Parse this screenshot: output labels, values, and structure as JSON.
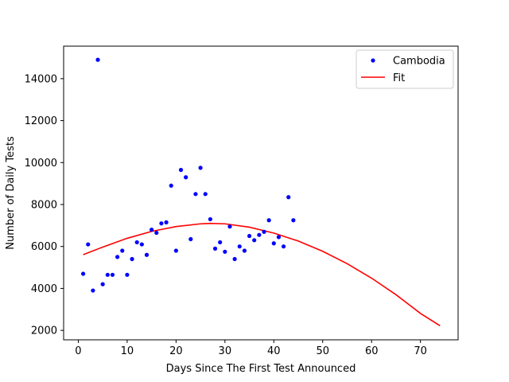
{
  "chart_data": {
    "type": "scatter",
    "title": "",
    "xlabel": "Days Since The First Test Announced",
    "ylabel": "Number of Daily Tests",
    "xlim": [
      -3,
      77.7
    ],
    "ylim": [
      1550,
      15550
    ],
    "xticks": [
      0,
      10,
      20,
      30,
      40,
      50,
      60,
      70
    ],
    "yticks": [
      2000,
      4000,
      6000,
      8000,
      10000,
      12000,
      14000
    ],
    "grid": false,
    "legend_position": "top-right",
    "series": [
      {
        "name": "Cambodia",
        "kind": "scatter",
        "color": "#0000ff",
        "x": [
          1,
          2,
          3,
          4,
          5,
          6,
          7,
          8,
          9,
          10,
          11,
          12,
          13,
          14,
          15,
          16,
          17,
          18,
          19,
          20,
          21,
          22,
          23,
          24,
          25,
          26,
          27,
          28,
          29,
          30,
          31,
          32,
          33,
          34,
          35,
          36,
          37,
          38,
          39,
          40,
          41,
          42,
          43,
          44
        ],
        "y": [
          4700,
          6100,
          3900,
          14900,
          4200,
          4650,
          4650,
          5500,
          5800,
          4650,
          5400,
          6200,
          6100,
          5600,
          6800,
          6650,
          7100,
          7150,
          8900,
          5800,
          9650,
          9300,
          6350,
          8500,
          9750,
          8500,
          7300,
          5900,
          6200,
          5750,
          6950,
          5400,
          6000,
          5800,
          6500,
          6300,
          6550,
          6700,
          7250,
          6150,
          6450,
          6000,
          8350,
          7250
        ]
      },
      {
        "name": "Fit",
        "kind": "line",
        "color": "#ff0000",
        "x": [
          1,
          5,
          10,
          15,
          20,
          25,
          27,
          30,
          35,
          40,
          45,
          50,
          55,
          60,
          65,
          70,
          74
        ],
        "y": [
          5610,
          5970,
          6390,
          6720,
          6950,
          7080,
          7100,
          7080,
          6920,
          6640,
          6260,
          5770,
          5180,
          4490,
          3700,
          2810,
          2220
        ]
      }
    ]
  }
}
